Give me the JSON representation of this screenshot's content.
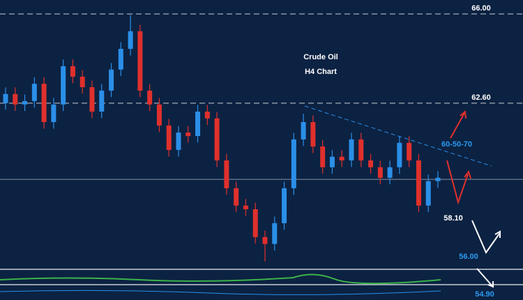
{
  "chart_data": {
    "type": "candlestick",
    "title": "Crude Oil",
    "subtitle": "H4 Chart",
    "ylim": [
      56.3,
      66.53
    ],
    "open": [
      62.6,
      62.95,
      62.55,
      62.68,
      63.34,
      61.88,
      62.55,
      64.01,
      63.61,
      63.21,
      62.28,
      63.08,
      63.88,
      64.67,
      65.34,
      63.08,
      62.55,
      61.75,
      60.82,
      61.48,
      61.35,
      62.28,
      62.02,
      60.42,
      59.36,
      58.7,
      58.56,
      57.5,
      57.24,
      58.03,
      59.36,
      61.22,
      61.88,
      60.95,
      60.16,
      60.56,
      60.42,
      61.22,
      60.42,
      60.16,
      59.76,
      60.16,
      61.09,
      60.42,
      58.7,
      59.63
    ],
    "high": [
      63.2,
      63.2,
      62.93,
      63.59,
      63.59,
      62.8,
      64.26,
      64.26,
      63.86,
      63.46,
      63.33,
      64.13,
      64.92,
      65.95,
      65.59,
      63.33,
      62.8,
      62.0,
      61.73,
      61.73,
      62.53,
      62.53,
      62.27,
      60.67,
      59.61,
      58.95,
      58.81,
      57.75,
      58.28,
      59.61,
      61.47,
      62.2,
      62.13,
      61.2,
      60.81,
      60.81,
      61.47,
      61.47,
      60.67,
      60.41,
      60.41,
      61.34,
      61.34,
      60.67,
      59.88,
      60.01
    ],
    "low": [
      62.35,
      62.3,
      62.3,
      62.43,
      61.63,
      61.63,
      62.3,
      63.36,
      62.96,
      62.03,
      62.03,
      62.83,
      63.63,
      64.42,
      62.83,
      62.3,
      61.5,
      60.57,
      60.57,
      61.1,
      61.1,
      61.77,
      60.17,
      59.11,
      58.45,
      58.31,
      57.25,
      56.57,
      56.99,
      57.78,
      59.11,
      60.97,
      60.7,
      59.91,
      59.91,
      60.17,
      60.17,
      60.17,
      59.91,
      59.51,
      59.51,
      59.91,
      60.17,
      58.45,
      58.45,
      59.38
    ],
    "close": [
      62.95,
      62.55,
      62.68,
      63.34,
      61.88,
      62.55,
      64.01,
      63.61,
      63.21,
      62.28,
      63.08,
      63.88,
      64.67,
      65.34,
      63.08,
      62.55,
      61.75,
      60.82,
      61.48,
      61.35,
      62.28,
      62.02,
      60.42,
      59.36,
      58.7,
      58.56,
      57.5,
      57.24,
      58.03,
      59.36,
      61.22,
      61.88,
      60.95,
      60.16,
      60.56,
      60.42,
      61.22,
      60.42,
      60.16,
      59.76,
      60.16,
      61.09,
      60.42,
      58.7,
      59.63,
      59.76
    ],
    "up_color": "#2b8fe8",
    "down_color": "#e0302c",
    "levels": [
      {
        "value": 66,
        "label": "66.00"
      },
      {
        "value": 62.6,
        "label": "62.60"
      }
    ],
    "current_price": 59.7,
    "annotations": [
      "60-50-70",
      "58.10",
      "56.00",
      "54.90"
    ]
  }
}
